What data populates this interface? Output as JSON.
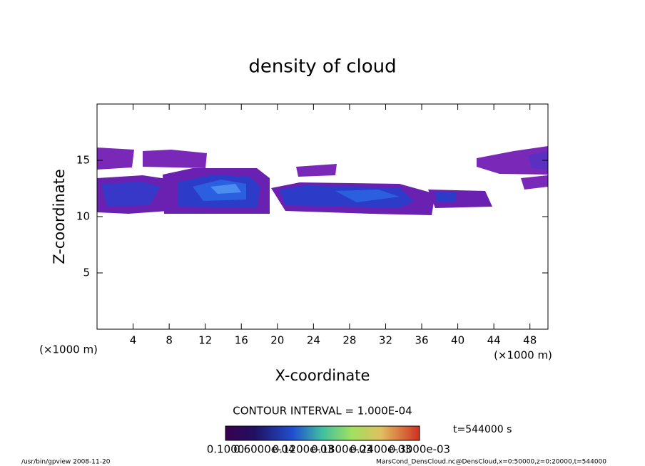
{
  "chart_data": {
    "type": "contour",
    "title": "density of cloud",
    "xlabel": "X-coordinate",
    "ylabel": "Z-coordinate",
    "xunit": "(×1000 m)",
    "yunit": "(×1000 m)",
    "xlim": [
      0,
      50
    ],
    "xticks": [
      4,
      8,
      12,
      16,
      20,
      24,
      28,
      32,
      36,
      40,
      44,
      48
    ],
    "ylim": [
      0,
      20
    ],
    "yticks": [
      5,
      10,
      15
    ],
    "contour_interval": "CONTOUR INTERVAL = 1.000E-04",
    "time": "t=544000 s",
    "colorbar_labels": [
      "0.1000",
      "0.6000e-04",
      "0.1200e-03",
      "0.1800e-03",
      "0.2400e-03",
      "0.3000e-03"
    ],
    "footer_left": "/usr/bin/gpview  2008-11-20",
    "footer_right": "MarsCond_DensCloud.nc@DensCloud,x=0:50000,z=0:20000,t=544000"
  }
}
